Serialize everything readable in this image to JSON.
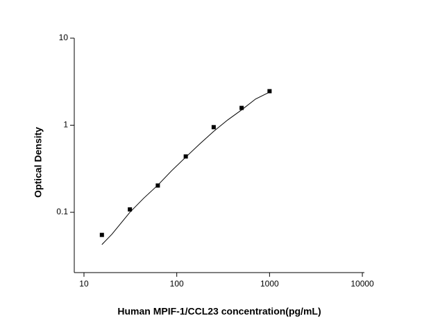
{
  "chart_data": {
    "type": "scatter",
    "x_label": "Human MPIF-1/CCL23 concentration(pg/mL)",
    "y_label": "Optical Density",
    "xscale": "log",
    "yscale": "log",
    "xlim": [
      7.86,
      10520
    ],
    "ylim": [
      0.0203,
      10
    ],
    "xticks": [
      10,
      100,
      1000,
      10000
    ],
    "yticks": [
      0.1,
      1,
      10
    ],
    "series": [
      {
        "type": "scatter",
        "color": "#000000",
        "x": [
          15.6,
          31.25,
          62.5,
          125,
          250,
          500,
          1000
        ],
        "values": [
          0.055,
          0.108,
          0.203,
          0.438,
          0.95,
          1.58,
          2.46
        ]
      },
      {
        "type": "line",
        "color": "#000000",
        "x": [
          15.6,
          20,
          31.25,
          44,
          62.5,
          88,
          125,
          177,
          250,
          354,
          500,
          707,
          1000
        ],
        "values": [
          0.0426,
          0.056,
          0.1,
          0.145,
          0.205,
          0.3,
          0.43,
          0.61,
          0.85,
          1.15,
          1.5,
          2.0,
          2.4
        ]
      }
    ]
  }
}
